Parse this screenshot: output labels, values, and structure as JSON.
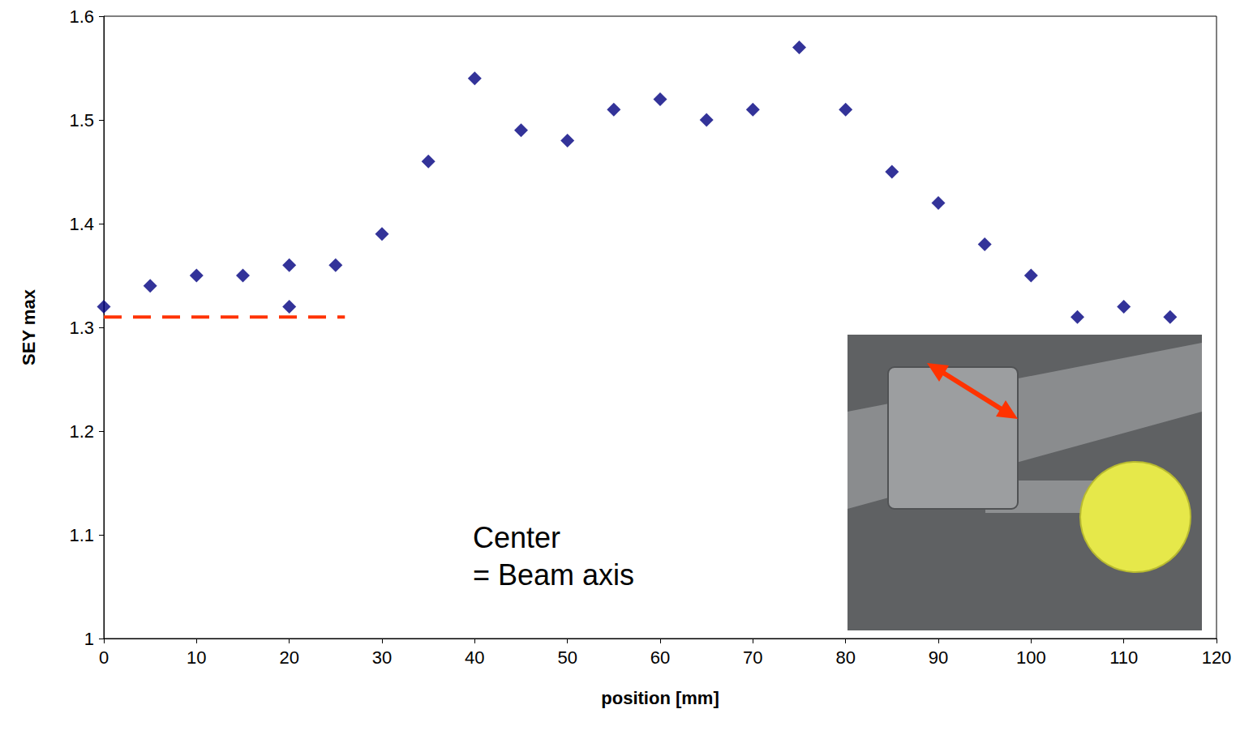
{
  "chart_data": {
    "type": "scatter",
    "x_label": "position [mm]",
    "y_label": "SEY max",
    "annotation": [
      "Center",
      "= Beam axis"
    ],
    "x": [
      0,
      5,
      10,
      15,
      20,
      20,
      25,
      30,
      35,
      40,
      45,
      50,
      55,
      60,
      65,
      70,
      75,
      80,
      85,
      90,
      95,
      100,
      105,
      110,
      115
    ],
    "values": [
      1.32,
      1.34,
      1.35,
      1.35,
      1.36,
      1.32,
      1.36,
      1.39,
      1.46,
      1.54,
      1.49,
      1.48,
      1.51,
      1.52,
      1.5,
      1.51,
      1.57,
      1.51,
      1.45,
      1.42,
      1.38,
      1.35,
      1.31,
      1.32,
      1.31
    ],
    "color": "#000080",
    "marker": "diamond",
    "reference_line": {
      "x": [
        0,
        26
      ],
      "y": 1.31,
      "color": "#ff3300",
      "line_style": "dashed"
    },
    "xlim": [
      0,
      120
    ],
    "xticks": [
      0,
      10,
      20,
      30,
      40,
      50,
      60,
      70,
      80,
      90,
      100,
      110,
      120
    ],
    "ylim": [
      1,
      1.6
    ],
    "yticks": [
      1,
      1.1,
      1.2,
      1.3,
      1.4,
      1.5,
      1.6
    ],
    "grid": false
  }
}
